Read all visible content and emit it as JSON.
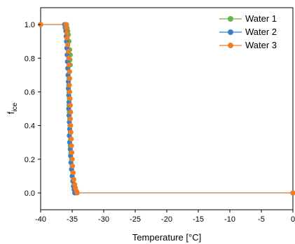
{
  "chart_data": {
    "type": "line",
    "xlabel": "Temperature [°C]",
    "ylabel_main": "f",
    "ylabel_sub": "ice",
    "xlim": [
      -40,
      0
    ],
    "ylim": [
      -0.1,
      1.1
    ],
    "xticks": [
      -40,
      -35,
      -30,
      -25,
      -20,
      -15,
      -10,
      -5,
      0
    ],
    "yticks": [
      0.0,
      0.2,
      0.4,
      0.6,
      0.8,
      1.0
    ],
    "xtick_labels": [
      "-40",
      "-35",
      "-30",
      "-25",
      "-20",
      "-15",
      "-10",
      "-5",
      "0"
    ],
    "ytick_labels": [
      "0.0",
      "0.2",
      "0.4",
      "0.6",
      "0.8",
      "1.0"
    ],
    "grid": false,
    "legend_position": "top-right",
    "series": [
      {
        "name": "Water 1",
        "color": "#6ab04c",
        "points": [
          [
            -40,
            1.0
          ],
          [
            -35.9,
            1.0
          ],
          [
            -35.8,
            0.98
          ],
          [
            -35.7,
            0.96
          ],
          [
            -35.6,
            0.94
          ],
          [
            -35.5,
            0.9
          ],
          [
            -35.4,
            0.85
          ],
          [
            -35.3,
            0.82
          ],
          [
            -35.35,
            0.79
          ],
          [
            -35.3,
            0.76
          ],
          [
            -35.4,
            0.72
          ],
          [
            -35.5,
            0.68
          ],
          [
            -35.55,
            0.64
          ],
          [
            -35.5,
            0.6
          ],
          [
            -35.45,
            0.56
          ],
          [
            -35.5,
            0.52
          ],
          [
            -35.45,
            0.48
          ],
          [
            -35.4,
            0.44
          ],
          [
            -35.35,
            0.4
          ],
          [
            -35.3,
            0.36
          ],
          [
            -35.25,
            0.32
          ],
          [
            -35.3,
            0.28
          ],
          [
            -35.2,
            0.24
          ],
          [
            -35.1,
            0.2
          ],
          [
            -35.0,
            0.16
          ],
          [
            -34.9,
            0.12
          ],
          [
            -34.8,
            0.08
          ],
          [
            -34.7,
            0.05
          ],
          [
            -34.6,
            0.02
          ],
          [
            -34.5,
            0.0
          ],
          [
            0,
            0.0
          ]
        ]
      },
      {
        "name": "Water 2",
        "color": "#3a7fc4",
        "points": [
          [
            -40,
            1.0
          ],
          [
            -36.2,
            1.0
          ],
          [
            -36.1,
            0.98
          ],
          [
            -36.0,
            0.96
          ],
          [
            -35.95,
            0.93
          ],
          [
            -35.9,
            0.9
          ],
          [
            -35.85,
            0.86
          ],
          [
            -35.8,
            0.82
          ],
          [
            -35.75,
            0.78
          ],
          [
            -35.7,
            0.74
          ],
          [
            -35.65,
            0.7
          ],
          [
            -35.6,
            0.66
          ],
          [
            -35.6,
            0.62
          ],
          [
            -35.55,
            0.58
          ],
          [
            -35.5,
            0.54
          ],
          [
            -35.55,
            0.5
          ],
          [
            -35.5,
            0.46
          ],
          [
            -35.45,
            0.42
          ],
          [
            -35.4,
            0.38
          ],
          [
            -35.45,
            0.34
          ],
          [
            -35.4,
            0.3
          ],
          [
            -35.3,
            0.26
          ],
          [
            -35.25,
            0.22
          ],
          [
            -35.2,
            0.18
          ],
          [
            -35.1,
            0.14
          ],
          [
            -35.0,
            0.1
          ],
          [
            -34.9,
            0.07
          ],
          [
            -34.8,
            0.04
          ],
          [
            -34.7,
            0.02
          ],
          [
            -34.6,
            0.0
          ],
          [
            0,
            0.0
          ]
        ]
      },
      {
        "name": "Water 3",
        "color": "#f07c24",
        "points": [
          [
            -40,
            1.0
          ],
          [
            -36.0,
            1.0
          ],
          [
            -35.9,
            0.98
          ],
          [
            -35.85,
            0.95
          ],
          [
            -35.8,
            0.92
          ],
          [
            -35.7,
            0.88
          ],
          [
            -35.6,
            0.84
          ],
          [
            -35.55,
            0.8
          ],
          [
            -35.5,
            0.76
          ],
          [
            -35.45,
            0.72
          ],
          [
            -35.4,
            0.68
          ],
          [
            -35.45,
            0.64
          ],
          [
            -35.4,
            0.6
          ],
          [
            -35.35,
            0.56
          ],
          [
            -35.3,
            0.52
          ],
          [
            -35.25,
            0.48
          ],
          [
            -35.3,
            0.44
          ],
          [
            -35.25,
            0.4
          ],
          [
            -35.2,
            0.36
          ],
          [
            -35.15,
            0.32
          ],
          [
            -35.1,
            0.28
          ],
          [
            -35.05,
            0.24
          ],
          [
            -35.0,
            0.2
          ],
          [
            -34.95,
            0.16
          ],
          [
            -34.85,
            0.12
          ],
          [
            -34.75,
            0.08
          ],
          [
            -34.6,
            0.05
          ],
          [
            -34.5,
            0.03
          ],
          [
            -34.3,
            0.01
          ],
          [
            -34.2,
            0.0
          ],
          [
            0,
            0.0
          ]
        ]
      }
    ]
  }
}
